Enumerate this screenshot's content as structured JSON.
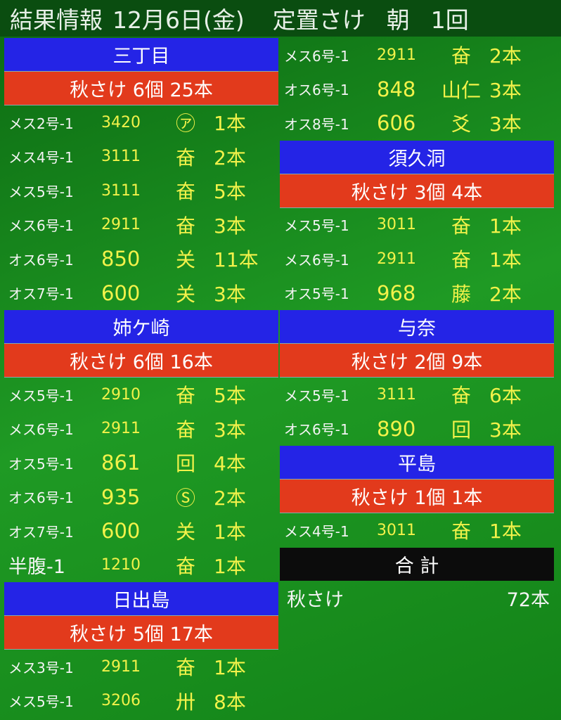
{
  "header": {
    "title": "結果情報",
    "date": "12月6日(金)",
    "net": "定置さけ",
    "time": "朝",
    "round": "1回"
  },
  "columns": [
    {
      "sections": [
        {
          "name": "三丁目",
          "summary": "秋さけ 6個 25本",
          "rows": [
            [
              "メス2号-1",
              "3420",
              "㋐",
              "1本"
            ],
            [
              "メス4号-1",
              "3111",
              "奋",
              "2本"
            ],
            [
              "メス5号-1",
              "3111",
              "奋",
              "5本"
            ],
            [
              "メス6号-1",
              "2911",
              "奋",
              "3本"
            ],
            [
              "オス6号-1",
              "850",
              "关",
              "11本"
            ],
            [
              "オス7号-1",
              "600",
              "关",
              "3本"
            ]
          ]
        },
        {
          "name": "姉ケ崎",
          "summary": "秋さけ 6個 16本",
          "rows": [
            [
              "メス5号-1",
              "2910",
              "奋",
              "5本"
            ],
            [
              "メス6号-1",
              "2911",
              "奋",
              "3本"
            ],
            [
              "オス5号-1",
              "861",
              "回",
              "4本"
            ],
            [
              "オス6号-1",
              "935",
              "Ⓢ",
              "2本"
            ],
            [
              "オス7号-1",
              "600",
              "关",
              "1本"
            ],
            [
              "半腹-1",
              "1210",
              "奋",
              "1本"
            ]
          ]
        },
        {
          "name": "日出島",
          "summary": "秋さけ 5個 17本",
          "rows": [
            [
              "メス3号-1",
              "2911",
              "奋",
              "1本"
            ],
            [
              "メス5号-1",
              "3206",
              "卅",
              "8本"
            ]
          ]
        }
      ]
    },
    {
      "sections": [
        {
          "rows": [
            [
              "メス6号-1",
              "2911",
              "奋",
              "2本"
            ],
            [
              "オス6号-1",
              "848",
              "山仁",
              "3本"
            ],
            [
              "オス8号-1",
              "606",
              "爻",
              "3本"
            ]
          ]
        },
        {
          "name": "須久洞",
          "summary": "秋さけ 3個 4本",
          "rows": [
            [
              "メス5号-1",
              "3011",
              "奋",
              "1本"
            ],
            [
              "メス6号-1",
              "2911",
              "奋",
              "1本"
            ],
            [
              "オス5号-1",
              "968",
              "藤",
              "2本"
            ]
          ]
        },
        {
          "name": "与奈",
          "summary": "秋さけ 2個 9本",
          "rows": [
            [
              "メス5号-1",
              "3111",
              "奋",
              "6本"
            ],
            [
              "オス6号-1",
              "890",
              "回",
              "3本"
            ]
          ]
        },
        {
          "name": "平島",
          "summary": "秋さけ 1個 1本",
          "rows": [
            [
              "メス4号-1",
              "3011",
              "奋",
              "1本"
            ]
          ]
        }
      ]
    }
  ],
  "total": {
    "title": "合 計",
    "label": "秋さけ",
    "value": "72本"
  }
}
